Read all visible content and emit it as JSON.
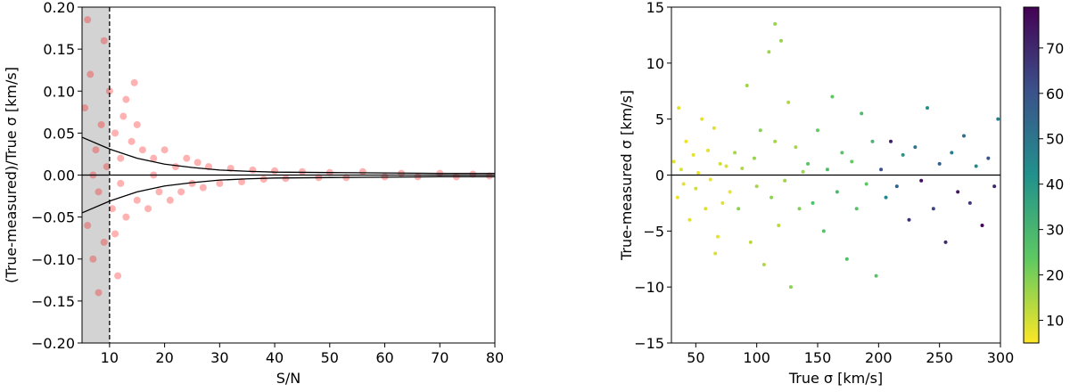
{
  "chart_data": [
    {
      "type": "scatter",
      "x_label": "S/N",
      "y_label": "(True-measured)/True σ [km/s]",
      "xlim": [
        5,
        80
      ],
      "ylim": [
        -0.2,
        0.2
      ],
      "xticks": [
        10,
        20,
        30,
        40,
        50,
        60,
        70,
        80
      ],
      "yticks": [
        {
          "value": -0.2,
          "label": "−0.20"
        },
        {
          "value": -0.15,
          "label": "−0.15"
        },
        {
          "value": -0.1,
          "label": "−0.10"
        },
        {
          "value": -0.05,
          "label": "−0.05"
        },
        {
          "value": 0,
          "label": "0.00"
        },
        {
          "value": 0.05,
          "label": "0.05"
        },
        {
          "value": 0.1,
          "label": "0.10"
        },
        {
          "value": 0.15,
          "label": "0.15"
        },
        {
          "value": 0.2,
          "label": "0.20"
        }
      ],
      "color": "#ff0000",
      "shade": [
        5,
        10
      ],
      "vline": 10,
      "hline": 0,
      "x": [
        5.5,
        6,
        6.5,
        7,
        7.5,
        8,
        8.5,
        9,
        9.5,
        10,
        10.5,
        11,
        11.5,
        12,
        12.5,
        13,
        14,
        14.5,
        15,
        16,
        17,
        18,
        19,
        20,
        21,
        22,
        23,
        24,
        25,
        26,
        27,
        28,
        30,
        32,
        34,
        36,
        38,
        40,
        42,
        45,
        48,
        50,
        53,
        56,
        60,
        63,
        66,
        70,
        73,
        76,
        79,
        7,
        12,
        18,
        6,
        8,
        9,
        11,
        13,
        15
      ],
      "values": [
        0.08,
        -0.06,
        0.12,
        -0.1,
        0.03,
        -0.02,
        0.06,
        -0.08,
        0.01,
        0.1,
        -0.04,
        0.05,
        -0.12,
        0.02,
        0.07,
        -0.05,
        0.04,
        0.11,
        -0.03,
        0.03,
        -0.04,
        0.02,
        -0.02,
        0.03,
        -0.03,
        0.01,
        -0.02,
        0.02,
        -0.01,
        0.015,
        -0.015,
        0.01,
        -0.01,
        0.008,
        -0.008,
        0.006,
        -0.005,
        0.005,
        -0.004,
        0.004,
        -0.003,
        0.003,
        -0.003,
        0.004,
        -0.002,
        0.002,
        -0.002,
        0.002,
        -0.002,
        0.001,
        -0.001,
        0,
        -0.01,
        0,
        0.185,
        -0.14,
        0.16,
        -0.07,
        0.09,
        0.06
      ],
      "lines": [
        {
          "x": [
            5,
            10,
            15,
            20,
            25,
            30,
            35,
            40,
            50,
            60,
            70,
            80
          ],
          "values": [
            0.045,
            0.031,
            0.02,
            0.013,
            0.009,
            0.006,
            0.0045,
            0.0035,
            0.003,
            0.0025,
            0.002,
            0.002
          ]
        },
        {
          "x": [
            5,
            10,
            15,
            20,
            25,
            30,
            35,
            40,
            50,
            60,
            70,
            80
          ],
          "values": [
            -0.045,
            -0.031,
            -0.02,
            -0.013,
            -0.009,
            -0.006,
            -0.0045,
            -0.0035,
            -0.003,
            -0.0025,
            -0.002,
            -0.002
          ]
        }
      ]
    },
    {
      "type": "scatter",
      "x_label": "True σ [km/s]",
      "y_label": "True-measured σ [km/s]",
      "xlim": [
        30,
        300
      ],
      "ylim": [
        -15,
        15
      ],
      "xticks": [
        50,
        100,
        150,
        200,
        250,
        300
      ],
      "yticks": [
        {
          "value": -15,
          "label": "−15"
        },
        {
          "value": -10,
          "label": "−10"
        },
        {
          "value": -5,
          "label": "−5"
        },
        0,
        5,
        10,
        15
      ],
      "hline": 0,
      "colormap": [
        "#fde725",
        "#5ec962",
        "#21918c",
        "#3b528b",
        "#440154"
      ],
      "clim": [
        5,
        79
      ],
      "cticks": [
        10,
        20,
        30,
        40,
        50,
        60,
        70
      ],
      "x": [
        32,
        35,
        38,
        40,
        42,
        45,
        48,
        50,
        52,
        55,
        58,
        60,
        62,
        65,
        68,
        70,
        72,
        75,
        78,
        36,
        66,
        82,
        85,
        88,
        92,
        95,
        98,
        100,
        103,
        106,
        110,
        112,
        115,
        118,
        120,
        123,
        126,
        128,
        132,
        135,
        138,
        115,
        142,
        146,
        150,
        155,
        158,
        162,
        166,
        170,
        174,
        178,
        182,
        186,
        190,
        195,
        198,
        202,
        206,
        210,
        215,
        220,
        225,
        230,
        235,
        240,
        245,
        250,
        255,
        260,
        265,
        270,
        275,
        280,
        285,
        290,
        295,
        298
      ],
      "values": [
        1.2,
        -2,
        0.5,
        -0.8,
        3,
        -4,
        1.8,
        -1.2,
        0.2,
        5,
        -3,
        2.2,
        -0.4,
        4.2,
        -5.5,
        1,
        -2.5,
        0.8,
        -1.5,
        6,
        -7,
        2,
        -3,
        0.6,
        8,
        -6,
        1.5,
        -1,
        4,
        -8,
        11,
        -2,
        3,
        -4.5,
        12,
        -0.5,
        6.5,
        -10,
        2.5,
        -3,
        0.3,
        13.5,
        1,
        -2.5,
        4,
        -5,
        0.5,
        7,
        -1.5,
        2,
        -7.5,
        1.2,
        -3,
        5.5,
        -0.8,
        3,
        -9,
        0.5,
        -2,
        3,
        -1,
        1.8,
        -4,
        2.5,
        -0.5,
        6,
        -3,
        1,
        -6,
        2,
        -1.5,
        3.5,
        -2.5,
        0.8,
        -4.5,
        1.5,
        -1,
        5
      ],
      "color_values": [
        8,
        7,
        9,
        8,
        7,
        9,
        8,
        10,
        7,
        8,
        9,
        8,
        7,
        9,
        8,
        10,
        8,
        9,
        7,
        8,
        9,
        15,
        18,
        14,
        16,
        13,
        17,
        15,
        19,
        14,
        16,
        18,
        15,
        13,
        17,
        16,
        14,
        18,
        15,
        19,
        16,
        17,
        25,
        27,
        23,
        26,
        28,
        24,
        29,
        25,
        27,
        23,
        26,
        28,
        24,
        30,
        25,
        60,
        45,
        72,
        55,
        40,
        68,
        50,
        76,
        42,
        63,
        57,
        70,
        48,
        74,
        53,
        66,
        44,
        78,
        59,
        71,
        47
      ]
    }
  ]
}
